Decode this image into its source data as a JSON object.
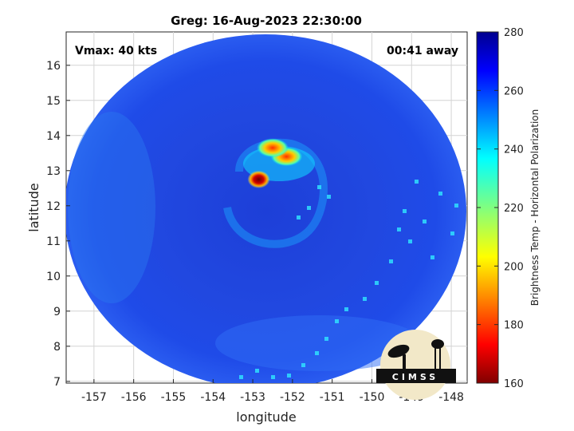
{
  "chart_data": {
    "type": "heatmap",
    "title": "Greg: 16-Aug-2023 22:30:00",
    "xlabel": "longitude",
    "ylabel": "latitude",
    "xlim": [
      -157.7,
      -147.6
    ],
    "ylim": [
      6.95,
      16.95
    ],
    "x_ticks": [
      -157,
      -156,
      -155,
      -154,
      -153,
      -152,
      -151,
      -150,
      -149,
      -148
    ],
    "y_ticks": [
      7,
      8,
      9,
      10,
      11,
      12,
      13,
      14,
      15,
      16
    ],
    "grid": true,
    "colorbar": {
      "label": "Brightness Temp - Horizontal Polarization",
      "range": [
        160,
        280
      ],
      "ticks": [
        160,
        180,
        200,
        220,
        240,
        260,
        280
      ],
      "colormap": "jet"
    },
    "annotations": {
      "vmax": "Vmax: 40 kts",
      "time_away": "00:41 away"
    },
    "features": [
      {
        "lon": -152.85,
        "lat": 12.75,
        "value": 168
      },
      {
        "lon": -152.15,
        "lat": 13.4,
        "value": 185
      },
      {
        "lon": -152.5,
        "lat": 13.65,
        "value": 205
      }
    ]
  },
  "logo": {
    "text": "CIMSS"
  },
  "colors": {
    "background_fill": "#1f3fe0",
    "grid": "#d4d4d4"
  }
}
